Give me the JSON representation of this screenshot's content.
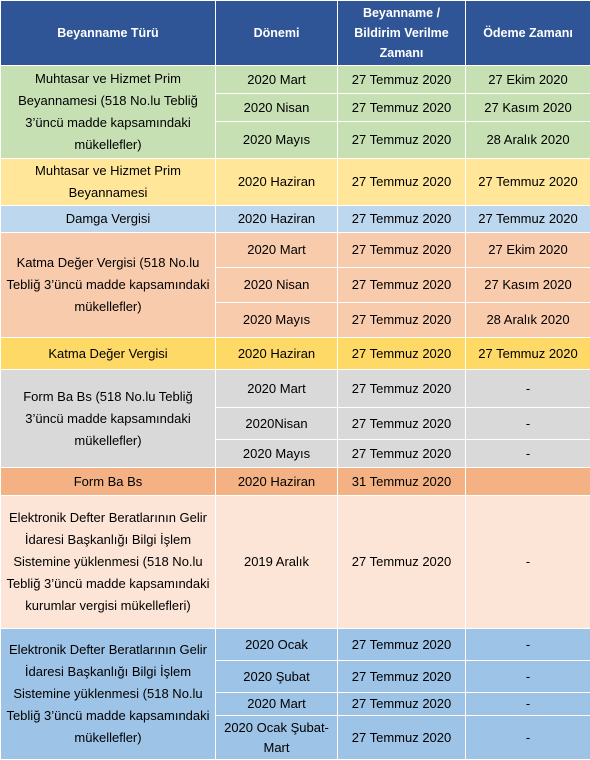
{
  "headers": {
    "type": "Beyanname Türü",
    "period": "Dönemi",
    "filing": "Beyanname / Bildirim Verilme Zamanı",
    "payment": "Ödeme Zamanı"
  },
  "groups": [
    {
      "type": "Muhtasar ve Hizmet Prim Beyannamesi (518 No.lu Tebliğ 3’üncü madde kapsamındaki mükellefler)",
      "rows": [
        {
          "period": "2020 Mart",
          "filing": "27 Temmuz 2020",
          "payment": "27 Ekim 2020"
        },
        {
          "period": "2020 Nisan",
          "filing": "27 Temmuz 2020",
          "payment": "27 Kasım 2020"
        },
        {
          "period": "2020 Mayıs",
          "filing": "27 Temmuz 2020",
          "payment": "28 Aralık 2020"
        }
      ]
    },
    {
      "type": "Muhtasar ve Hizmet Prim Beyannamesi",
      "rows": [
        {
          "period": "2020 Haziran",
          "filing": "27 Temmuz 2020",
          "payment": "27 Temmuz 2020"
        }
      ]
    },
    {
      "type": "Damga Vergisi",
      "rows": [
        {
          "period": "2020 Haziran",
          "filing": "27 Temmuz 2020",
          "payment": "27 Temmuz 2020"
        }
      ]
    },
    {
      "type": "Katma Değer Vergisi (518 No.lu Tebliğ 3’üncü madde kapsamındaki mükellefler)",
      "rows": [
        {
          "period": "2020 Mart",
          "filing": "27 Temmuz 2020",
          "payment": "27 Ekim 2020"
        },
        {
          "period": "2020 Nisan",
          "filing": "27 Temmuz 2020",
          "payment": "27 Kasım 2020"
        },
        {
          "period": "2020 Mayıs",
          "filing": "27 Temmuz 2020",
          "payment": "28 Aralık 2020"
        }
      ]
    },
    {
      "type": "Katma Değer Vergisi",
      "rows": [
        {
          "period": "2020 Haziran",
          "filing": "27 Temmuz 2020",
          "payment": "27 Temmuz 2020"
        }
      ]
    },
    {
      "type": "Form Ba Bs (518 No.lu Tebliğ 3’üncü madde kapsamındaki mükellefler)",
      "rows": [
        {
          "period": "2020 Mart",
          "filing": "27 Temmuz 2020",
          "payment": "-"
        },
        {
          "period": "2020Nisan",
          "filing": "27 Temmuz 2020",
          "payment": "-"
        },
        {
          "period": "2020 Mayıs",
          "filing": "27 Temmuz 2020",
          "payment": "-"
        }
      ]
    },
    {
      "type": "Form Ba Bs",
      "rows": [
        {
          "period": "2020 Haziran",
          "filing": "31 Temmuz 2020",
          "payment": ""
        }
      ]
    },
    {
      "type": "Elektronik Defter Beratlarının Gelir İdaresi Başkanlığı Bilgi İşlem Sistemine yüklenmesi (518 No.lu Tebliğ 3’üncü madde kapsamındaki kurumlar vergisi mükellefleri)",
      "rows": [
        {
          "period": "2019 Aralık",
          "filing": "27 Temmuz 2020",
          "payment": "-"
        }
      ]
    },
    {
      "type": "Elektronik Defter Beratlarının Gelir İdaresi Başkanlığı Bilgi İşlem Sistemine yüklenmesi (518 No.lu Tebliğ 3’üncü madde kapsamındaki mükellefler)",
      "rows": [
        {
          "period": "2020 Ocak",
          "filing": "27 Temmuz 2020",
          "payment": "-"
        },
        {
          "period": "2020 Şubat",
          "filing": "27 Temmuz 2020",
          "payment": "-"
        },
        {
          "period": "2020 Mart",
          "filing": "27 Temmuz 2020",
          "payment": "-"
        },
        {
          "period": "2020 Ocak Şubat-Mart",
          "filing": "27 Temmuz 2020",
          "payment": "-"
        }
      ]
    }
  ]
}
